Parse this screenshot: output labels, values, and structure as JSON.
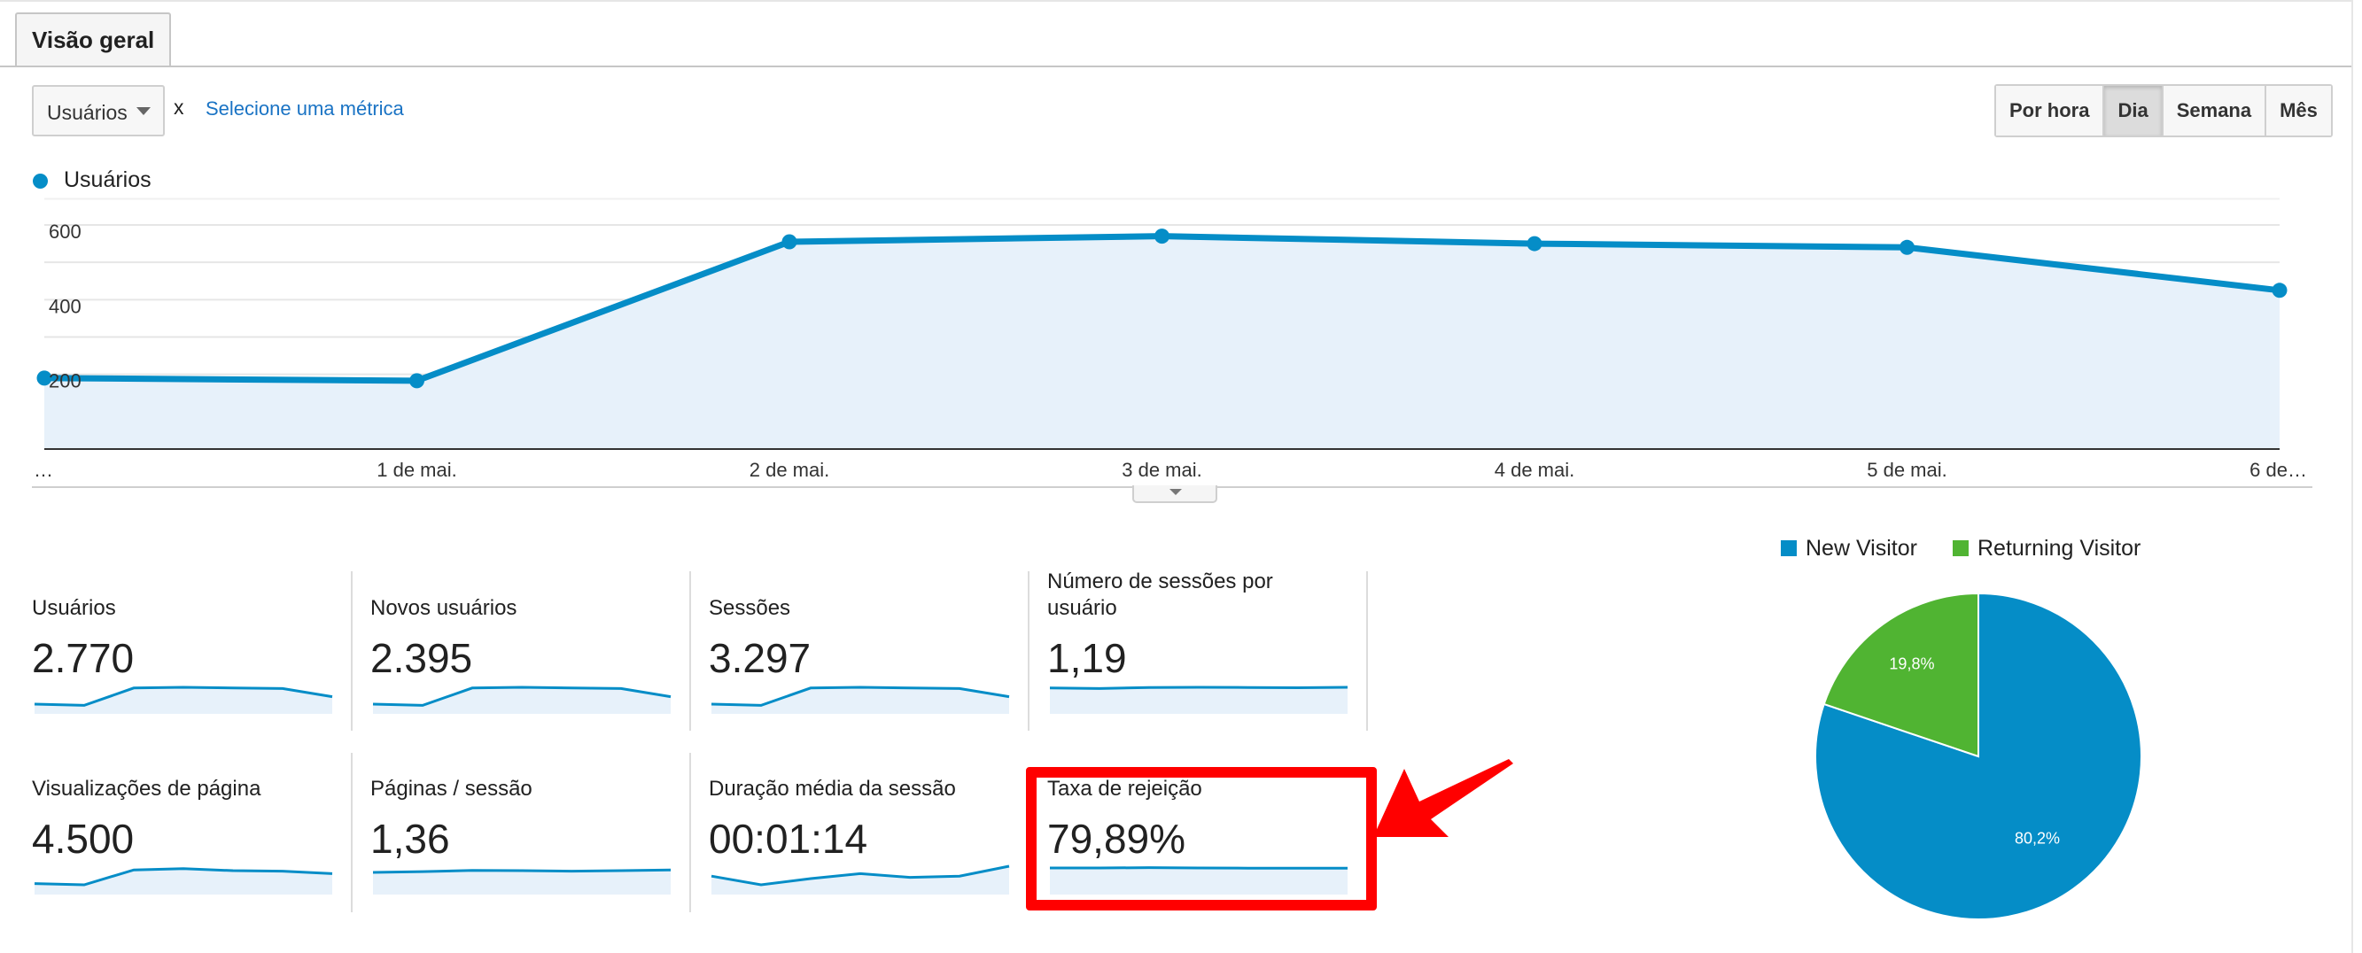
{
  "tabs": [
    {
      "label": "Visão geral",
      "active": true
    }
  ],
  "metric_selector": {
    "selected": "Usuários",
    "remove": "x",
    "add_metric_link": "Selecione uma métrica"
  },
  "granularity": {
    "options": [
      "Por hora",
      "Dia",
      "Semana",
      "Mês"
    ],
    "selected": "Dia"
  },
  "colors": {
    "series": "#058dc7",
    "area": "#e7f1fa",
    "new_visitor": "#058dc7",
    "returning_visitor": "#50b432",
    "highlight": "#ff0000"
  },
  "chart_data": [
    {
      "type": "area",
      "series": [
        {
          "name": "Usuários",
          "values": [
            190,
            183,
            555,
            570,
            550,
            540,
            425
          ]
        }
      ],
      "categories": [
        "…",
        "1 de mai.",
        "2 de mai.",
        "3 de mai.",
        "4 de mai.",
        "5 de mai.",
        "6 de…"
      ],
      "y_ticks": [
        "200",
        "400",
        "600"
      ],
      "ylim": [
        0,
        600
      ],
      "grid": true,
      "legend": "top-left"
    },
    {
      "type": "pie",
      "series": [
        {
          "name": "New Visitor",
          "value": 80.2,
          "label": "80,2%"
        },
        {
          "name": "Returning Visitor",
          "value": 19.8,
          "label": "19,8%"
        }
      ],
      "legend": "top"
    }
  ],
  "scorecards": [
    {
      "label": "Usuários",
      "value": "2.770",
      "spark": [
        0.25,
        0.2,
        0.9,
        0.93,
        0.9,
        0.88,
        0.55
      ]
    },
    {
      "label": "Novos usuários",
      "value": "2.395",
      "spark": [
        0.25,
        0.2,
        0.9,
        0.93,
        0.9,
        0.88,
        0.55
      ]
    },
    {
      "label": "Sessões",
      "value": "3.297",
      "spark": [
        0.25,
        0.2,
        0.9,
        0.93,
        0.9,
        0.88,
        0.55
      ]
    },
    {
      "label": "Número de sessões por usuário",
      "value": "1,19",
      "spark": [
        0.9,
        0.88,
        0.92,
        0.93,
        0.92,
        0.91,
        0.93
      ]
    },
    {
      "label": "Visualizações de página",
      "value": "4.500",
      "spark": [
        0.3,
        0.25,
        0.85,
        0.9,
        0.82,
        0.8,
        0.7
      ]
    },
    {
      "label": "Páginas / sessão",
      "value": "1,36",
      "spark": [
        0.75,
        0.78,
        0.83,
        0.82,
        0.8,
        0.82,
        0.85
      ]
    },
    {
      "label": "Duração média da sessão",
      "value": "00:01:14",
      "spark": [
        0.6,
        0.25,
        0.5,
        0.7,
        0.55,
        0.6,
        1.0
      ]
    },
    {
      "label": "Taxa de rejeição",
      "value": "79,89%",
      "spark": [
        0.93,
        0.93,
        0.94,
        0.93,
        0.92,
        0.92,
        0.92
      ]
    }
  ]
}
